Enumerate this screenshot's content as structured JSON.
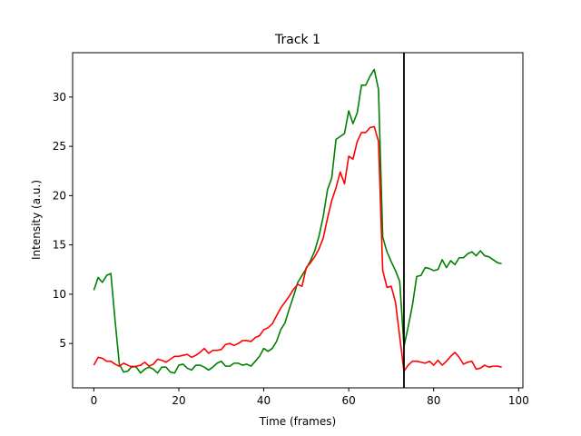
{
  "chart_data": {
    "type": "line",
    "title": "Track 1",
    "xlabel": "Time (frames)",
    "ylabel": "Intensity (a.u.)",
    "xlim": [
      -5,
      101
    ],
    "ylim": [
      0.5,
      34.5
    ],
    "xticks": [
      0,
      20,
      40,
      60,
      80,
      100
    ],
    "yticks": [
      5,
      10,
      15,
      20,
      25,
      30
    ],
    "grid": false,
    "legend": "none",
    "vline": {
      "x": 73,
      "color": "#000000"
    },
    "x": [
      0,
      1,
      2,
      3,
      4,
      5,
      6,
      7,
      8,
      9,
      10,
      11,
      12,
      13,
      14,
      15,
      16,
      17,
      18,
      19,
      20,
      21,
      22,
      23,
      24,
      25,
      26,
      27,
      28,
      29,
      30,
      31,
      32,
      33,
      34,
      35,
      36,
      37,
      38,
      39,
      40,
      41,
      42,
      43,
      44,
      45,
      46,
      47,
      48,
      49,
      50,
      51,
      52,
      53,
      54,
      55,
      56,
      57,
      58,
      59,
      60,
      61,
      62,
      63,
      64,
      65,
      66,
      67,
      68,
      69,
      70,
      71,
      72,
      73,
      74,
      75,
      76,
      77,
      78,
      79,
      80,
      81,
      82,
      83,
      84,
      85,
      86,
      87,
      88,
      89,
      90,
      91,
      92,
      93,
      94,
      95,
      96
    ],
    "series": [
      {
        "color": "#008000",
        "values": [
          10.4,
          11.7,
          11.2,
          11.9,
          12.1,
          7.3,
          2.9,
          2.1,
          2.2,
          2.7,
          2.6,
          2.0,
          2.4,
          2.6,
          2.4,
          2.0,
          2.6,
          2.6,
          2.1,
          2.0,
          2.8,
          2.9,
          2.5,
          2.3,
          2.8,
          2.8,
          2.6,
          2.3,
          2.6,
          3.0,
          3.2,
          2.7,
          2.7,
          3.0,
          3.0,
          2.8,
          2.9,
          2.7,
          3.2,
          3.7,
          4.5,
          4.2,
          4.5,
          5.2,
          6.4,
          7.1,
          8.5,
          9.8,
          11.2,
          11.9,
          12.6,
          13.4,
          14.4,
          15.9,
          17.9,
          20.6,
          21.8,
          25.7,
          26.0,
          26.3,
          28.6,
          27.3,
          28.4,
          31.2,
          31.2,
          32.1,
          32.8,
          30.8,
          15.8,
          14.3,
          13.3,
          12.4,
          11.3,
          4.7,
          6.7,
          8.9,
          11.8,
          11.9,
          12.7,
          12.6,
          12.4,
          12.5,
          13.5,
          12.7,
          13.4,
          13.0,
          13.7,
          13.7,
          14.1,
          14.3,
          13.9,
          14.4,
          13.9,
          13.8,
          13.5,
          13.2,
          13.1
        ]
      },
      {
        "color": "#ff0000",
        "values": [
          2.8,
          3.6,
          3.5,
          3.2,
          3.2,
          2.9,
          2.7,
          3.0,
          2.8,
          2.6,
          2.7,
          2.8,
          3.1,
          2.7,
          2.9,
          3.4,
          3.3,
          3.1,
          3.4,
          3.7,
          3.7,
          3.8,
          3.9,
          3.6,
          3.8,
          4.1,
          4.5,
          4.0,
          4.3,
          4.3,
          4.4,
          4.9,
          5.0,
          4.8,
          5.0,
          5.3,
          5.3,
          5.2,
          5.6,
          5.8,
          6.4,
          6.6,
          7.0,
          7.8,
          8.6,
          9.2,
          9.8,
          10.5,
          11.0,
          10.8,
          12.7,
          13.2,
          13.8,
          14.6,
          15.7,
          17.7,
          19.5,
          20.8,
          22.4,
          21.2,
          24.0,
          23.7,
          25.5,
          26.4,
          26.4,
          26.9,
          27.0,
          25.5,
          12.4,
          10.7,
          10.8,
          9.2,
          5.7,
          2.2,
          2.8,
          3.2,
          3.2,
          3.1,
          3.0,
          3.2,
          2.8,
          3.3,
          2.8,
          3.2,
          3.7,
          4.1,
          3.6,
          2.9,
          3.1,
          3.2,
          2.4,
          2.5,
          2.8,
          2.6,
          2.7,
          2.7,
          2.6
        ]
      }
    ]
  }
}
